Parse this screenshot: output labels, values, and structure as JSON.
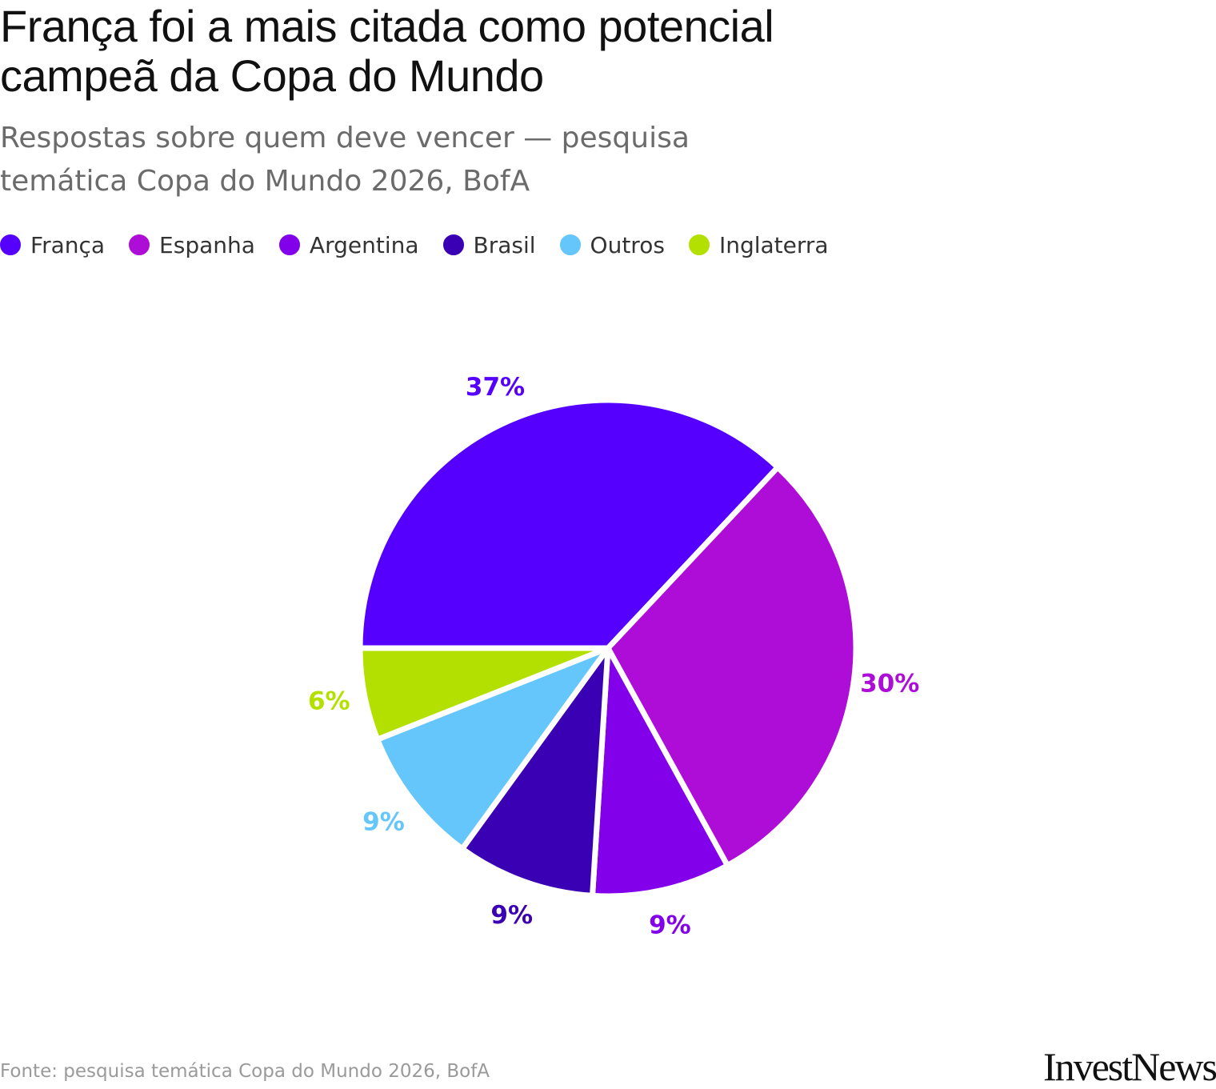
{
  "header": {
    "title": "França foi a mais citada como potencial campeã da Copa do Mundo",
    "subtitle": "Respostas sobre quem deve vencer — pesquisa temática Copa do Mundo 2026, BofA"
  },
  "footer": {
    "source": "Fonte: pesquisa temática Copa do Mundo 2026, BofA",
    "logo_text": "InvestNews"
  },
  "chart_data": {
    "type": "pie",
    "title": "França foi a mais citada como potencial campeã da Copa do Mundo",
    "subtitle": "Respostas sobre quem deve vencer — pesquisa temática Copa do Mundo 2026, BofA",
    "legend_position": "top-left",
    "slices": [
      {
        "name": "França",
        "value": 37,
        "label": "37%",
        "color": "#5500ff"
      },
      {
        "name": "Espanha",
        "value": 30,
        "label": "30%",
        "color": "#ad0dd6"
      },
      {
        "name": "Argentina",
        "value": 9,
        "label": "9%",
        "color": "#8200ea"
      },
      {
        "name": "Brasil",
        "value": 9,
        "label": "9%",
        "color": "#3a00b3"
      },
      {
        "name": "Outros",
        "value": 9,
        "label": "9%",
        "color": "#64c6fb"
      },
      {
        "name": "Inglaterra",
        "value": 6,
        "label": "6%",
        "color": "#b4e000"
      }
    ]
  }
}
